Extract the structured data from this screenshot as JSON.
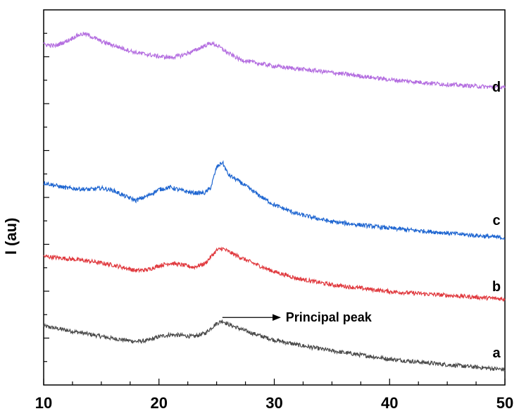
{
  "chart_data": {
    "type": "line",
    "title": "",
    "xlabel": "",
    "ylabel": "I (au)",
    "xlim": [
      10,
      50
    ],
    "ylim": [
      0,
      100
    ],
    "x_ticks": [
      "10",
      "20",
      "30",
      "40",
      "50"
    ],
    "y_tick_labels_shown": false,
    "grid": false,
    "legend": "none",
    "series": [
      {
        "name": "a",
        "color": "#4a4a4a",
        "x": [
          10,
          12,
          14,
          16,
          18,
          19,
          20,
          21,
          22,
          23,
          24,
          25,
          25.5,
          26,
          27,
          28,
          29,
          30,
          32,
          35,
          40,
          45,
          50
        ],
        "values": [
          15.7,
          14.6,
          13.5,
          12.4,
          11.6,
          11.8,
          12.9,
          13.4,
          13.2,
          12.9,
          13.8,
          16.4,
          17.1,
          16.2,
          15.0,
          13.9,
          12.9,
          12.0,
          10.7,
          9.1,
          6.9,
          5.4,
          4.1
        ]
      },
      {
        "name": "b",
        "color": "#e0393e",
        "x": [
          10,
          12,
          14,
          16,
          18,
          19,
          20,
          21,
          22,
          23,
          24,
          25,
          25.5,
          26,
          27,
          28,
          29,
          30,
          32,
          35,
          40,
          45,
          50
        ],
        "values": [
          34.3,
          33.7,
          33.0,
          32.0,
          30.5,
          30.7,
          31.8,
          32.5,
          32.0,
          31.4,
          32.4,
          35.9,
          36.4,
          35.6,
          34.1,
          32.7,
          31.4,
          30.2,
          28.4,
          26.7,
          24.9,
          23.9,
          22.9
        ]
      },
      {
        "name": "c",
        "color": "#1f66d1",
        "x": [
          10,
          12,
          14,
          15,
          16,
          17,
          18,
          19,
          20,
          21,
          22,
          23,
          24,
          24.5,
          25,
          25.5,
          26,
          27,
          28,
          29,
          30,
          32,
          35,
          40,
          45,
          50
        ],
        "values": [
          53.9,
          52.5,
          52.1,
          52.5,
          51.9,
          50.4,
          49.2,
          50.4,
          52.1,
          52.7,
          51.8,
          51.2,
          51.2,
          52.7,
          58.0,
          59.4,
          56.1,
          54.2,
          52.0,
          49.9,
          48.0,
          45.6,
          43.5,
          41.8,
          40.5,
          39.2
        ]
      },
      {
        "name": "d",
        "color": "#b46ee0",
        "x": [
          10,
          11,
          12,
          13,
          13.5,
          14,
          15,
          16,
          17,
          18,
          19,
          20,
          21,
          22,
          23,
          24,
          24.5,
          25,
          26,
          27,
          28,
          30,
          32,
          35,
          40,
          45,
          50
        ],
        "values": [
          90.8,
          90.4,
          91.7,
          93.3,
          93.6,
          93.1,
          91.6,
          90.6,
          89.6,
          88.6,
          88.1,
          87.6,
          87.3,
          87.9,
          89.0,
          90.5,
          91.1,
          90.6,
          88.5,
          86.8,
          86.1,
          85.0,
          84.3,
          83.3,
          81.4,
          80.1,
          79.2
        ]
      }
    ],
    "annotations": [
      {
        "text": "Principal peak",
        "arrow_from": [
          25.5,
          18
        ],
        "arrow_to": [
          30.5,
          18
        ]
      }
    ]
  }
}
